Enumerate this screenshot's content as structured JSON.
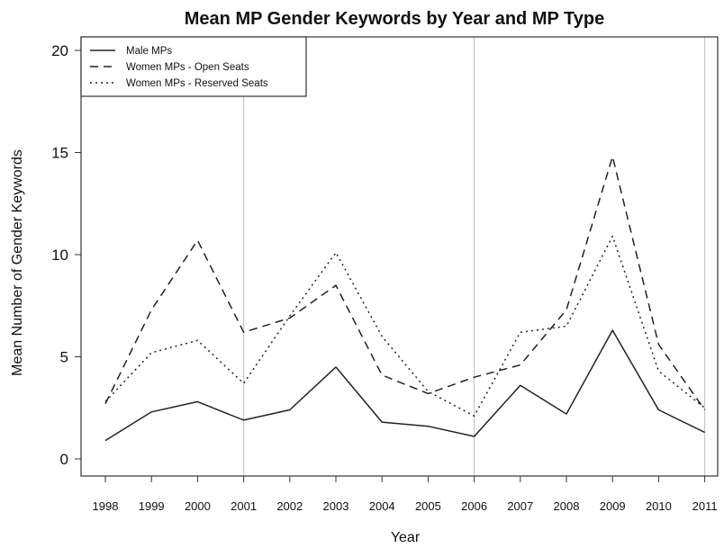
{
  "chart_data": {
    "type": "line",
    "title": "Mean MP Gender Keywords by Year and MP Type",
    "xlabel": "Year",
    "ylabel": "Mean Number of Gender Keywords",
    "x": [
      "1998",
      "1999",
      "2000",
      "2001",
      "2002",
      "2003",
      "2004",
      "2005",
      "2006",
      "2007",
      "2008",
      "2009",
      "2010",
      "2011"
    ],
    "ylim": [
      0,
      20
    ],
    "yticks": [
      0,
      5,
      10,
      15,
      20
    ],
    "vertical_reference_lines": [
      "2001",
      "2006",
      "2011"
    ],
    "legend_position": "top-left",
    "series": [
      {
        "name": "Male MPs",
        "style": "solid",
        "values": [
          0.9,
          2.3,
          2.8,
          1.9,
          2.4,
          4.5,
          1.8,
          1.6,
          1.1,
          3.6,
          2.2,
          6.3,
          2.4,
          1.3
        ]
      },
      {
        "name": "Women MPs - Open Seats",
        "style": "dashed",
        "values": [
          2.7,
          7.3,
          10.7,
          6.2,
          6.9,
          8.5,
          4.1,
          3.2,
          4.0,
          4.6,
          7.3,
          14.8,
          5.6,
          2.4
        ]
      },
      {
        "name": "Women MPs - Reserved Seats",
        "style": "dotted",
        "values": [
          2.8,
          5.2,
          5.8,
          3.7,
          7.0,
          10.1,
          6.0,
          3.3,
          2.1,
          6.2,
          6.5,
          10.9,
          4.3,
          2.5
        ]
      }
    ]
  },
  "colors": {
    "line": "#222222",
    "refline": "#c8c8c8",
    "axis": "#333333"
  }
}
